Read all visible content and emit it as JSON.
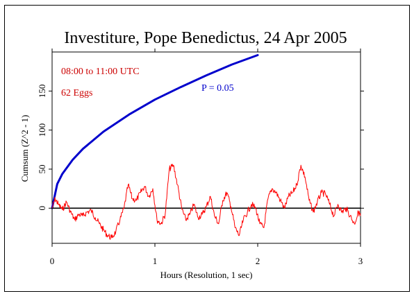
{
  "chart_data": {
    "type": "line",
    "title": "Investiture, Pope Benedictus, 24 Apr 2005",
    "xlabel": "Hours (Resolution, 1 sec)",
    "ylabel": "Cumsum (Z^2 - 1)",
    "xlim": [
      0,
      3
    ],
    "ylim": [
      -45,
      200
    ],
    "x_ticks": [
      0,
      1,
      2,
      3
    ],
    "x_tick_labels": [
      "0",
      "1",
      "2",
      "3"
    ],
    "y_ticks": [
      0,
      50,
      100,
      150
    ],
    "y_tick_labels": [
      "0",
      "50",
      "100",
      "150"
    ],
    "annotations": {
      "time_range": "08:00 to 11:00 UTC",
      "eggs": "62 Eggs",
      "p_label": "P = 0.05"
    },
    "colors": {
      "data": "#ff0000",
      "envelope": "#0000cc",
      "baseline": "#000000",
      "annotation_red": "#cc0000",
      "annotation_blue": "#0000cc"
    },
    "baseline": 0,
    "envelope": {
      "label": "P = 0.05",
      "x": [
        0,
        0.05,
        0.1,
        0.2,
        0.3,
        0.5,
        0.75,
        1.0,
        1.25,
        1.5,
        1.75,
        2.0
      ],
      "y": [
        0,
        31,
        44,
        62,
        76,
        98,
        120,
        139,
        155,
        170,
        184,
        196
      ]
    },
    "series": [
      {
        "values_x": [
          0,
          0.03,
          0.06,
          0.1,
          0.14,
          0.18,
          0.22,
          0.26,
          0.3,
          0.34,
          0.38,
          0.42,
          0.46,
          0.5,
          0.54,
          0.58,
          0.62,
          0.66,
          0.7,
          0.74,
          0.78,
          0.82,
          0.86,
          0.9,
          0.94,
          0.98,
          1.02,
          1.06,
          1.1,
          1.14,
          1.18,
          1.22,
          1.26,
          1.3,
          1.34,
          1.38,
          1.42,
          1.46,
          1.5,
          1.54,
          1.58,
          1.62,
          1.66,
          1.7,
          1.74,
          1.78,
          1.82,
          1.86,
          1.9,
          1.94,
          1.98,
          2.02,
          2.06,
          2.1,
          2.14,
          2.18,
          2.22,
          2.26,
          2.3,
          2.34,
          2.38,
          2.42,
          2.46,
          2.5,
          2.54,
          2.58,
          2.62,
          2.66,
          2.7,
          2.74,
          2.78,
          2.82,
          2.86,
          2.9,
          2.94,
          2.98,
          3.0
        ],
        "values_y": [
          0,
          12,
          5,
          -2,
          8,
          -5,
          -15,
          -8,
          -10,
          -5,
          -3,
          -12,
          -20,
          -28,
          -35,
          -38,
          -30,
          -15,
          0,
          30,
          12,
          10,
          20,
          28,
          15,
          25,
          -15,
          -20,
          -8,
          50,
          55,
          30,
          0,
          -15,
          -8,
          5,
          -12,
          -8,
          2,
          15,
          -10,
          -20,
          10,
          20,
          2,
          -25,
          -35,
          -15,
          -5,
          5,
          0,
          -20,
          -25,
          12,
          25,
          20,
          10,
          0,
          15,
          20,
          30,
          55,
          40,
          10,
          -5,
          8,
          20,
          18,
          5,
          -10,
          5,
          -5,
          0,
          -10,
          -20,
          -5,
          -10
        ]
      }
    ]
  }
}
